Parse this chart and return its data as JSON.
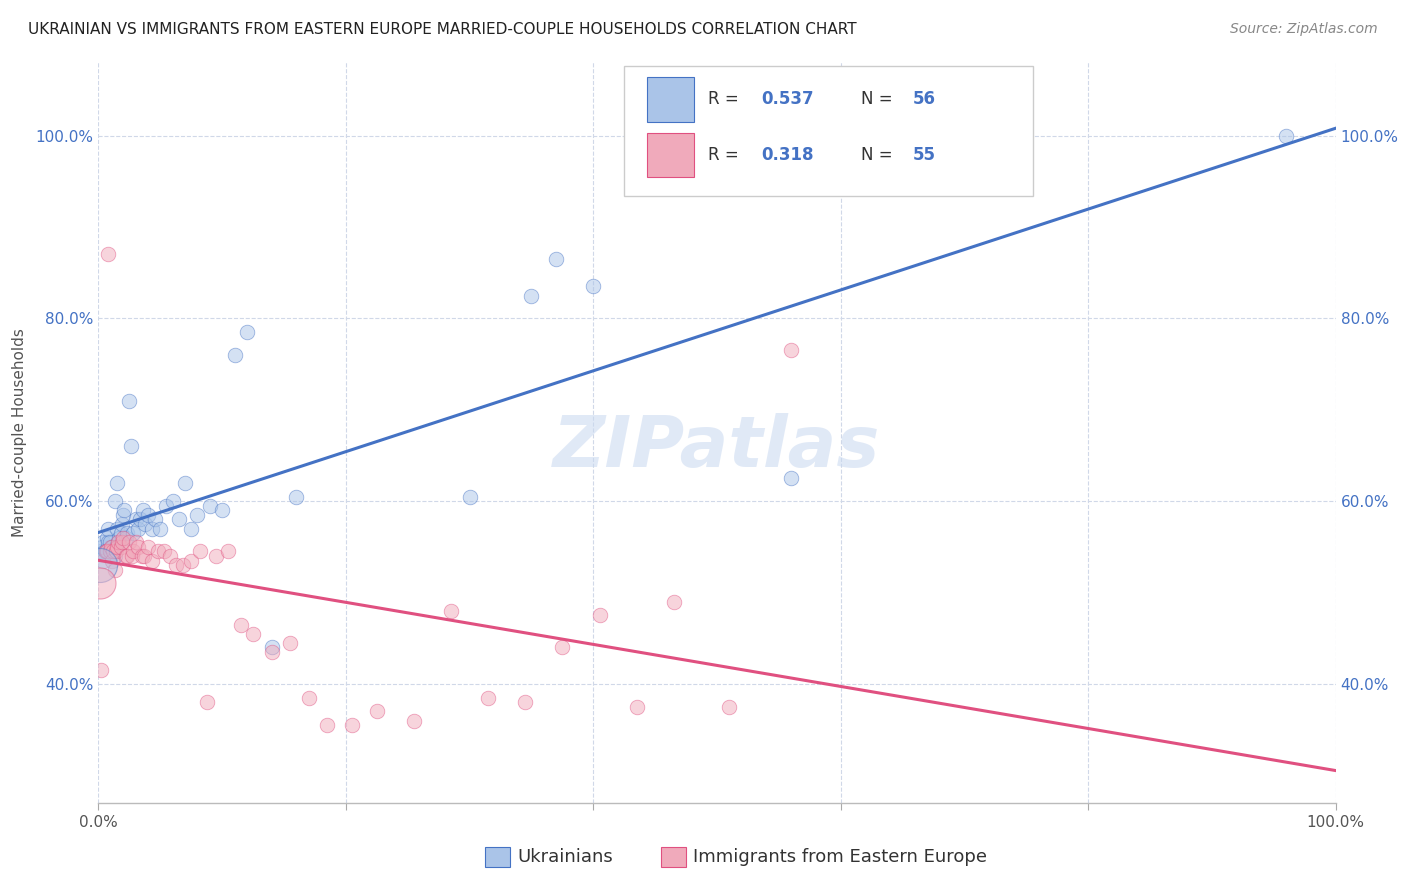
{
  "title": "UKRAINIAN VS IMMIGRANTS FROM EASTERN EUROPE MARRIED-COUPLE HOUSEHOLDS CORRELATION CHART",
  "source": "Source: ZipAtlas.com",
  "ylabel": "Married-couple Households",
  "background_color": "#ffffff",
  "grid_color": "#d0d8e8",
  "watermark": "ZIPatlas",
  "blue_R": "0.537",
  "blue_N": "56",
  "pink_R": "0.318",
  "pink_N": "55",
  "blue_color": "#aac4e8",
  "pink_color": "#f0aabb",
  "blue_line_color": "#4472c4",
  "pink_line_color": "#e05080",
  "blue_x": [
    0.002,
    0.003,
    0.004,
    0.005,
    0.006,
    0.007,
    0.008,
    0.008,
    0.009,
    0.01,
    0.01,
    0.011,
    0.012,
    0.013,
    0.013,
    0.014,
    0.015,
    0.015,
    0.016,
    0.017,
    0.018,
    0.019,
    0.02,
    0.021,
    0.022,
    0.023,
    0.025,
    0.026,
    0.028,
    0.03,
    0.032,
    0.034,
    0.036,
    0.038,
    0.04,
    0.043,
    0.046,
    0.05,
    0.055,
    0.06,
    0.065,
    0.07,
    0.075,
    0.08,
    0.09,
    0.1,
    0.11,
    0.12,
    0.14,
    0.16,
    0.3,
    0.35,
    0.37,
    0.4,
    0.56,
    0.96
  ],
  "blue_y": [
    0.545,
    0.55,
    0.555,
    0.545,
    0.545,
    0.56,
    0.555,
    0.57,
    0.555,
    0.545,
    0.54,
    0.55,
    0.545,
    0.54,
    0.6,
    0.55,
    0.57,
    0.62,
    0.555,
    0.56,
    0.565,
    0.575,
    0.585,
    0.59,
    0.56,
    0.565,
    0.71,
    0.66,
    0.565,
    0.58,
    0.57,
    0.58,
    0.59,
    0.575,
    0.585,
    0.57,
    0.58,
    0.57,
    0.595,
    0.6,
    0.58,
    0.62,
    0.57,
    0.585,
    0.595,
    0.59,
    0.76,
    0.785,
    0.44,
    0.605,
    0.605,
    0.825,
    0.865,
    0.835,
    0.625,
    1.0
  ],
  "pink_x": [
    0.002,
    0.004,
    0.006,
    0.007,
    0.008,
    0.009,
    0.01,
    0.011,
    0.012,
    0.013,
    0.014,
    0.015,
    0.016,
    0.018,
    0.019,
    0.02,
    0.022,
    0.023,
    0.025,
    0.027,
    0.028,
    0.03,
    0.032,
    0.035,
    0.037,
    0.04,
    0.043,
    0.048,
    0.053,
    0.058,
    0.063,
    0.068,
    0.075,
    0.082,
    0.088,
    0.095,
    0.105,
    0.115,
    0.125,
    0.14,
    0.155,
    0.17,
    0.185,
    0.205,
    0.225,
    0.255,
    0.285,
    0.315,
    0.345,
    0.375,
    0.405,
    0.435,
    0.465,
    0.51,
    0.56
  ],
  "pink_y": [
    0.415,
    0.535,
    0.545,
    0.545,
    0.87,
    0.545,
    0.55,
    0.535,
    0.545,
    0.525,
    0.545,
    0.55,
    0.555,
    0.55,
    0.555,
    0.56,
    0.54,
    0.54,
    0.555,
    0.54,
    0.545,
    0.555,
    0.55,
    0.54,
    0.54,
    0.55,
    0.535,
    0.545,
    0.545,
    0.54,
    0.53,
    0.53,
    0.535,
    0.545,
    0.38,
    0.54,
    0.545,
    0.465,
    0.455,
    0.435,
    0.445,
    0.385,
    0.355,
    0.355,
    0.37,
    0.36,
    0.48,
    0.385,
    0.38,
    0.44,
    0.475,
    0.375,
    0.49,
    0.375,
    0.765
  ],
  "xlim": [
    0.0,
    1.0
  ],
  "ylim": [
    0.27,
    1.08
  ],
  "xticks": [
    0.0,
    0.2,
    0.4,
    0.6,
    0.8,
    1.0
  ],
  "yticks": [
    0.4,
    0.6,
    0.8,
    1.0
  ],
  "ytick_labels": [
    "40.0%",
    "60.0%",
    "80.0%",
    "100.0%"
  ],
  "xtick_labels_left": "0.0%",
  "xtick_labels_right": "100.0%",
  "marker_size": 110,
  "alpha": 0.5,
  "linewidth": 2.2,
  "legend_fontsize": 13,
  "title_fontsize": 11,
  "axis_label_fontsize": 11,
  "tick_fontsize": 11,
  "source_fontsize": 10,
  "watermark_fontsize": 52,
  "watermark_color": "#c8d8f0",
  "watermark_alpha": 0.55
}
